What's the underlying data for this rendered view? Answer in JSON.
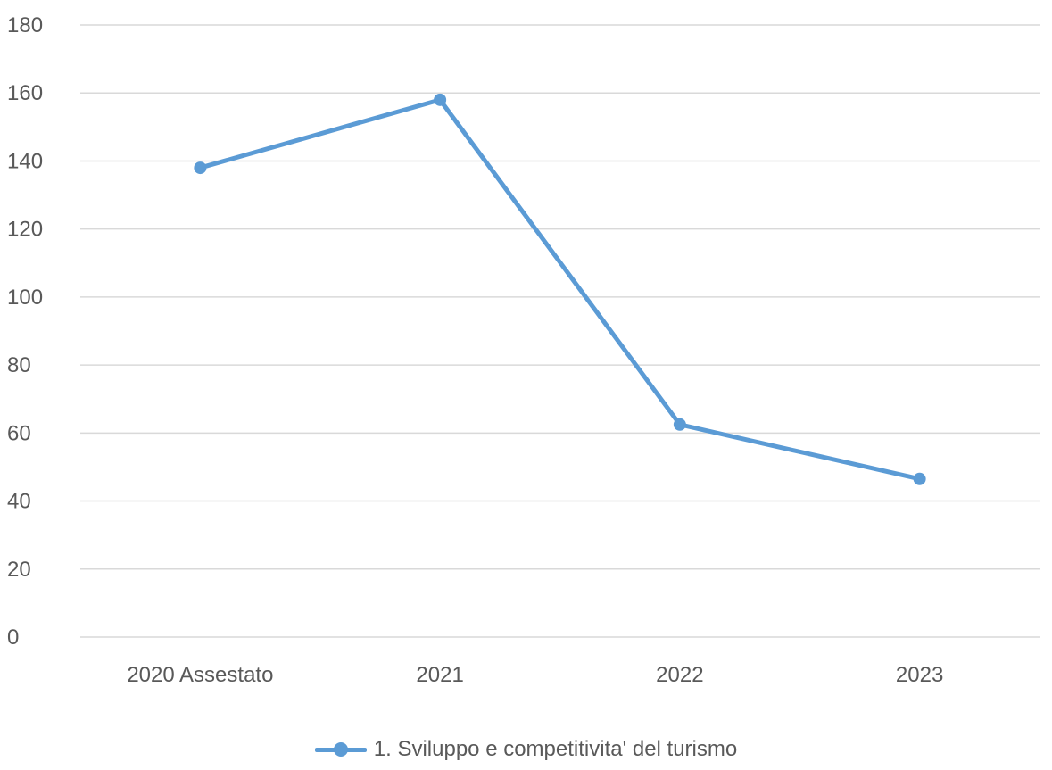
{
  "chart_data": {
    "type": "line",
    "title": "",
    "xlabel": "",
    "ylabel": "",
    "categories": [
      "2020 Assestato",
      "2021",
      "2022",
      "2023"
    ],
    "series": [
      {
        "name": "1. Sviluppo e competitivita' del turismo",
        "values": [
          138,
          158,
          62.5,
          46.5
        ],
        "color": "#5b9bd5"
      }
    ],
    "ylim": [
      0,
      180
    ],
    "yticks": [
      0,
      20,
      40,
      60,
      80,
      100,
      120,
      140,
      160,
      180
    ],
    "grid": true,
    "legend_position": "bottom"
  }
}
